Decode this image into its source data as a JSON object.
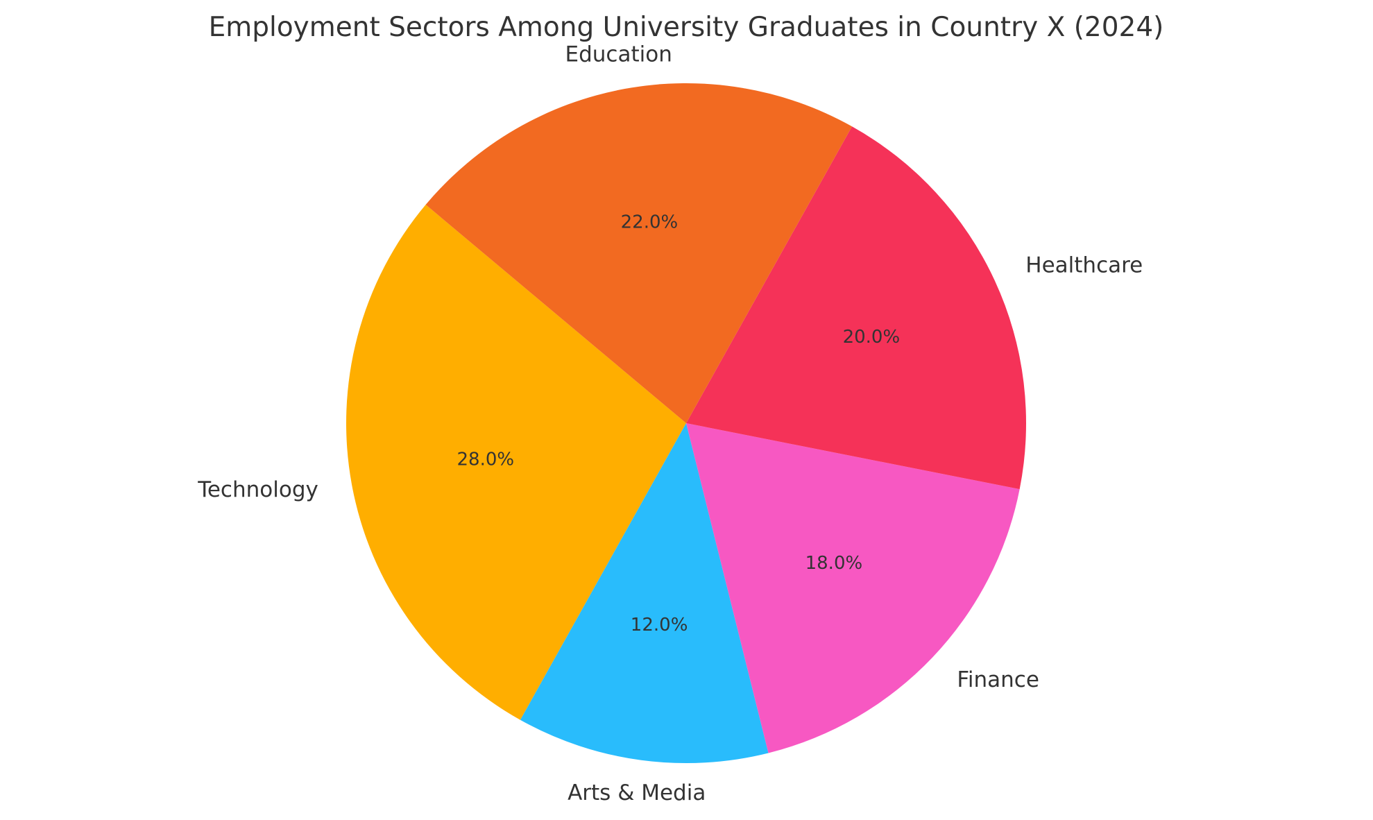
{
  "chart_data": {
    "type": "pie",
    "title": "Employment Sectors Among University Graduates in Country X (2024)",
    "categories": [
      "Technology",
      "Arts & Media",
      "Finance",
      "Healthcare",
      "Education"
    ],
    "values": [
      28.0,
      12.0,
      18.0,
      20.0,
      22.0
    ],
    "percent_labels": [
      "28.0%",
      "12.0%",
      "18.0%",
      "20.0%",
      "22.0%"
    ],
    "colors": [
      "#FFAE00",
      "#29BCFC",
      "#F758C2",
      "#F53258",
      "#F26A21"
    ],
    "start_angle_deg": 140,
    "direction": "counterclockwise",
    "legend": "none"
  }
}
